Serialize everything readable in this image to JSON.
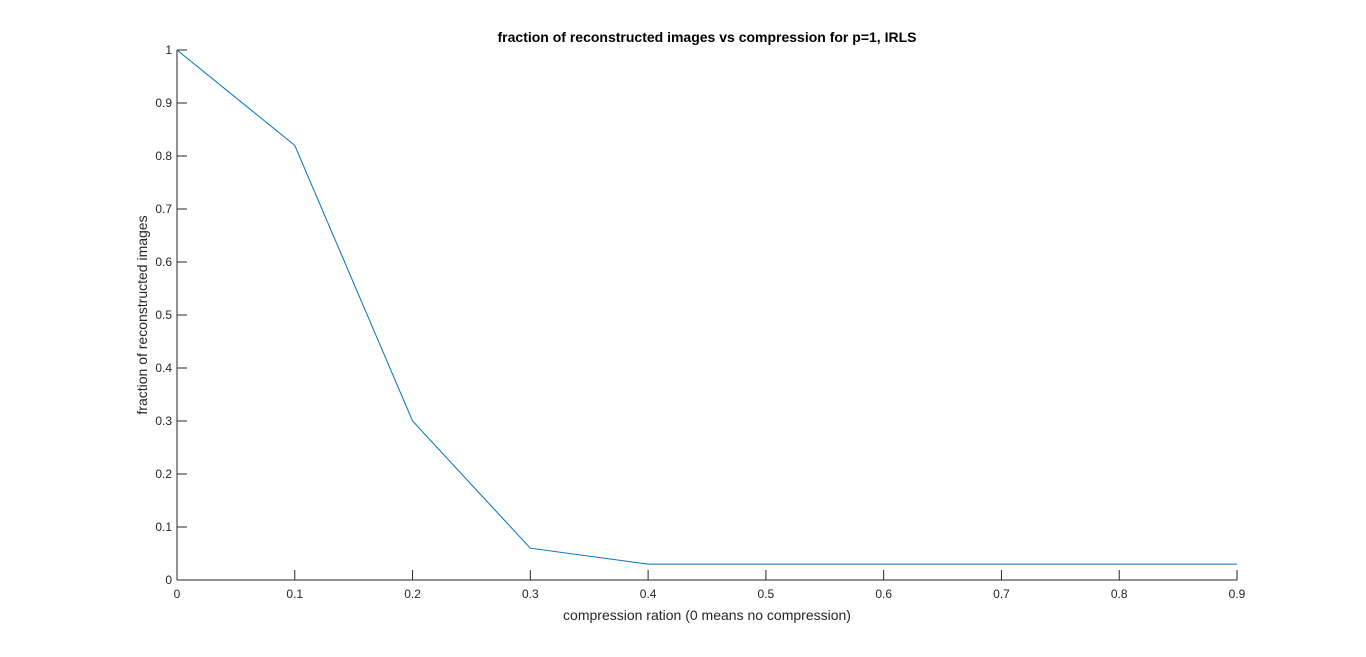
{
  "chart_data": {
    "type": "line",
    "title": "fraction of reconstructed images vs compression for p=1, IRLS",
    "xlabel": "compression ration (0 means no compression)",
    "ylabel": "fraction of reconstructed images",
    "xlim": [
      0,
      0.9
    ],
    "ylim": [
      0,
      1
    ],
    "xticks": [
      0,
      0.1,
      0.2,
      0.3,
      0.4,
      0.5,
      0.6,
      0.7,
      0.8,
      0.9
    ],
    "xtick_labels": [
      "0",
      "0.1",
      "0.2",
      "0.3",
      "0.4",
      "0.5",
      "0.6",
      "0.7",
      "0.8",
      "0.9"
    ],
    "yticks": [
      0,
      0.1,
      0.2,
      0.3,
      0.4,
      0.5,
      0.6,
      0.7,
      0.8,
      0.9,
      1
    ],
    "ytick_labels": [
      "0",
      "0.1",
      "0.2",
      "0.3",
      "0.4",
      "0.5",
      "0.6",
      "0.7",
      "0.8",
      "0.9",
      "1"
    ],
    "grid": false,
    "legend": "none",
    "line_color": "#0072BD",
    "series": [
      {
        "x": [
          0,
          0.1,
          0.2,
          0.3,
          0.4,
          0.5,
          0.6,
          0.7,
          0.8,
          0.9
        ],
        "values": [
          1.0,
          0.82,
          0.3,
          0.06,
          0.03,
          0.03,
          0.03,
          0.03,
          0.03,
          0.03
        ]
      }
    ]
  }
}
